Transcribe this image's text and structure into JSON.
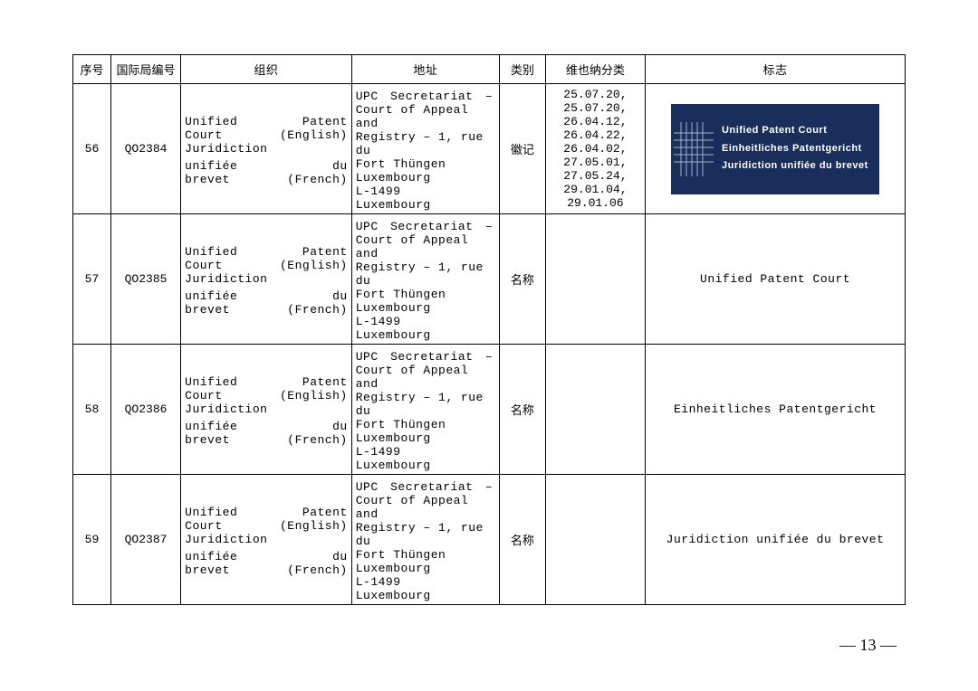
{
  "pageNumber": "— 13 —",
  "table": {
    "headers": {
      "seq": "序号",
      "code": "国际局编号",
      "org": "组织",
      "addr": "地址",
      "cat": "类别",
      "vienna": "维也纳分类",
      "logo": "标志"
    },
    "rows": [
      {
        "seq": "56",
        "code": "QO2384",
        "org": [
          "Unified　　　　Patent",
          "Court (English)",
          "Juridiction",
          "unifiée　　　　du",
          "brevet (French)"
        ],
        "addr": [
          "UPC　Secretariat　–",
          "Court of Appeal and",
          "Registry – 1, rue du",
          "Fort Thüngen",
          "Luxembourg",
          "L-1499",
          "Luxembourg"
        ],
        "cat": "徽记",
        "vienna": [
          "25.07.20,",
          "25.07.20,",
          "26.04.12,",
          "26.04.22,",
          "26.04.02,",
          "27.05.01,",
          "27.05.24,",
          "29.01.04,",
          "29.01.06"
        ],
        "logoType": "image",
        "logoLines": [
          "Unified Patent Court",
          "Einheitliches Patentgericht",
          "Juridiction unifiée du brevet"
        ]
      },
      {
        "seq": "57",
        "code": "QO2385",
        "org": [
          "Unified　　　　Patent",
          "Court (English)",
          "Juridiction",
          "unifiée　　　　du",
          "brevet (French)"
        ],
        "addr": [
          "UPC　Secretariat　–",
          "Court of Appeal and",
          "Registry – 1, rue du",
          "Fort Thüngen",
          "Luxembourg",
          "L-1499",
          "Luxembourg"
        ],
        "cat": "名称",
        "vienna": [],
        "logoType": "text",
        "logoText": "Unified Patent Court"
      },
      {
        "seq": "58",
        "code": "QO2386",
        "org": [
          "Unified　　　　Patent",
          "Court (English)",
          "Juridiction",
          "unifiée　　　　du",
          "brevet (French)"
        ],
        "addr": [
          "UPC　Secretariat　–",
          "Court of Appeal and",
          "Registry – 1, rue du",
          "Fort Thüngen",
          "Luxembourg",
          "L-1499",
          "Luxembourg"
        ],
        "cat": "名称",
        "vienna": [],
        "logoType": "text",
        "logoText": "Einheitliches Patentgericht"
      },
      {
        "seq": "59",
        "code": "QO2387",
        "org": [
          "Unified　　　　Patent",
          "Court (English)",
          "Juridiction",
          "unifiée　　　　du",
          "brevet (French)"
        ],
        "addr": [
          "UPC　Secretariat　–",
          "Court of Appeal and",
          "Registry – 1, rue du",
          "Fort Thüngen",
          "Luxembourg",
          "L-1499",
          "Luxembourg"
        ],
        "cat": "名称",
        "vienna": [],
        "logoType": "text",
        "logoText": "Juridiction unifiée du brevet"
      }
    ]
  },
  "logoStyle": {
    "background": "#1a2e5c",
    "textColor": "#ffffff",
    "emblemStroke": "#a0b0d0"
  }
}
